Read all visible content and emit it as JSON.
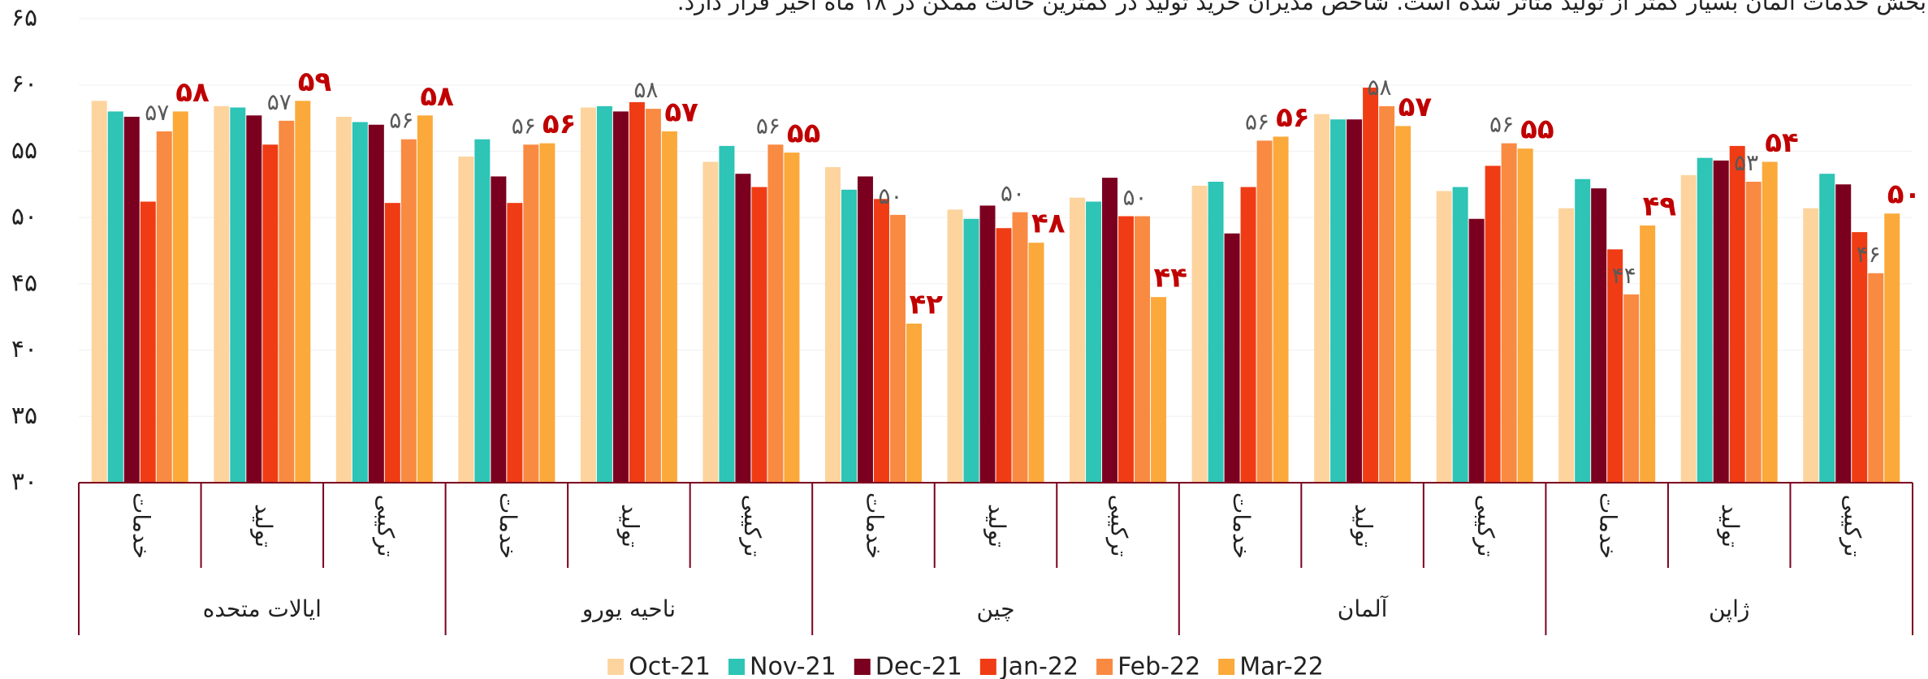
{
  "chart_data": {
    "type": "bar",
    "title": "بخش خدمات آلمان بسیار کمتر از تولید متاثر شده است. شاخص مدیران خرید تولید در کمترین حالت ممکن در ۱۸ ماه اخیر قرار دارد.",
    "categories": [
      "خدمات",
      "تولید",
      "ترکیبی",
      "خدمات",
      "تولید",
      "ترکیبی",
      "خدمات",
      "تولید",
      "ترکیبی",
      "خدمات",
      "تولید",
      "ترکیبی",
      "خدمات",
      "تولید",
      "ترکیبی"
    ],
    "category_groups": [
      "ایالات متحده",
      "ناحیه یورو",
      "چین",
      "آلمان",
      "ژاپن"
    ],
    "series": [
      {
        "name": "Oct-21",
        "color": "#fdd49e",
        "values": [
          58.8,
          58.4,
          57.6,
          54.6,
          58.3,
          54.2,
          53.8,
          50.6,
          51.5,
          52.4,
          57.8,
          52.0,
          50.7,
          53.2,
          50.7
        ]
      },
      {
        "name": "Nov-21",
        "color": "#2ec4b6",
        "values": [
          58.0,
          58.3,
          57.2,
          55.9,
          58.4,
          55.4,
          52.1,
          49.9,
          51.2,
          52.7,
          57.4,
          52.3,
          52.9,
          54.5,
          53.3
        ]
      },
      {
        "name": "Dec-21",
        "color": "#7b0020",
        "values": [
          57.6,
          57.7,
          57.0,
          53.1,
          58.0,
          53.3,
          53.1,
          50.9,
          53.0,
          48.8,
          57.4,
          49.9,
          52.2,
          54.3,
          52.5
        ]
      },
      {
        "name": "Jan-22",
        "color": "#f03c14",
        "values": [
          51.2,
          55.5,
          51.1,
          51.1,
          58.7,
          52.3,
          51.4,
          49.2,
          50.1,
          52.3,
          59.8,
          53.9,
          47.6,
          55.4,
          48.9
        ]
      },
      {
        "name": "Feb-22",
        "color": "#f98a42",
        "values": [
          56.5,
          57.3,
          55.9,
          55.5,
          58.2,
          55.5,
          50.2,
          50.4,
          50.1,
          55.8,
          58.4,
          55.6,
          44.2,
          52.7,
          45.8
        ],
        "value_labels": [
          "۵۷",
          "۵۷",
          "۵۶",
          "۵۶",
          "۵۸",
          "۵۶",
          "۵۰",
          "۵۰",
          "۵۰",
          "۵۶",
          "۵۸",
          "۵۶",
          "۴۴",
          "۵۳",
          "۴۶"
        ]
      },
      {
        "name": "Mar-22",
        "color": "#fba93a",
        "values": [
          58.0,
          58.8,
          57.7,
          55.6,
          56.5,
          54.9,
          42.0,
          48.1,
          44.0,
          56.1,
          56.9,
          55.2,
          49.4,
          54.2,
          50.3
        ],
        "value_labels": [
          "۵۸",
          "۵۹",
          "۵۸",
          "۵۶",
          "۵۷",
          "۵۵",
          "۴۲",
          "۴۸",
          "۴۴",
          "۵۶",
          "۵۷",
          "۵۵",
          "۴۹",
          "۵۴",
          "۵۰"
        ]
      }
    ],
    "ylim": [
      30,
      65
    ],
    "yticks": [
      {
        "value": 30,
        "label": "۳۰"
      },
      {
        "value": 35,
        "label": "۳۵"
      },
      {
        "value": 40,
        "label": "۴۰"
      },
      {
        "value": 45,
        "label": "۴۵"
      },
      {
        "value": 50,
        "label": "۵۰"
      },
      {
        "value": 55,
        "label": "۵۵"
      },
      {
        "value": 60,
        "label": "۶۰"
      },
      {
        "value": 65,
        "label": "۶۵"
      }
    ],
    "grid": true
  }
}
